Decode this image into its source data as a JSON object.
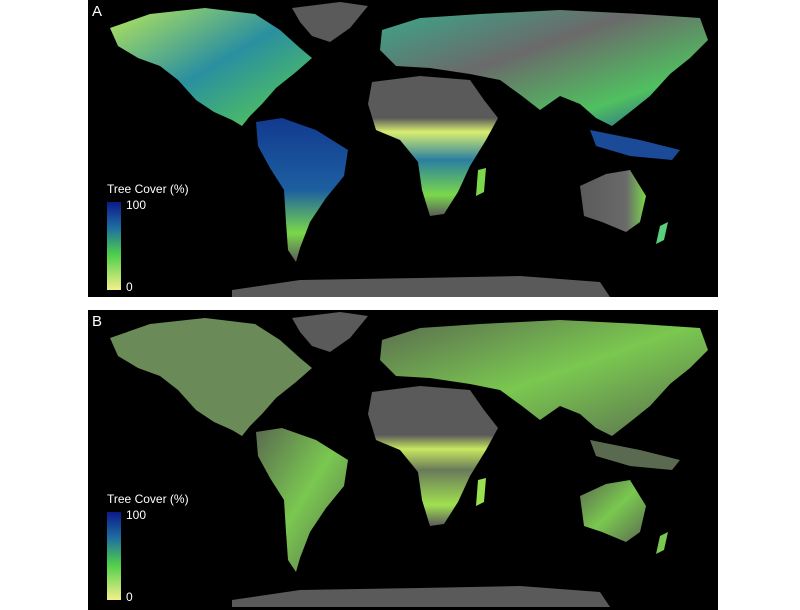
{
  "panels": [
    {
      "label": "A",
      "legend": {
        "title": "Tree Cover (%)",
        "max": 100,
        "min": 0
      }
    },
    {
      "label": "B",
      "legend": {
        "title": "Tree Cover (%)",
        "max": 100,
        "min": 0
      }
    }
  ]
}
